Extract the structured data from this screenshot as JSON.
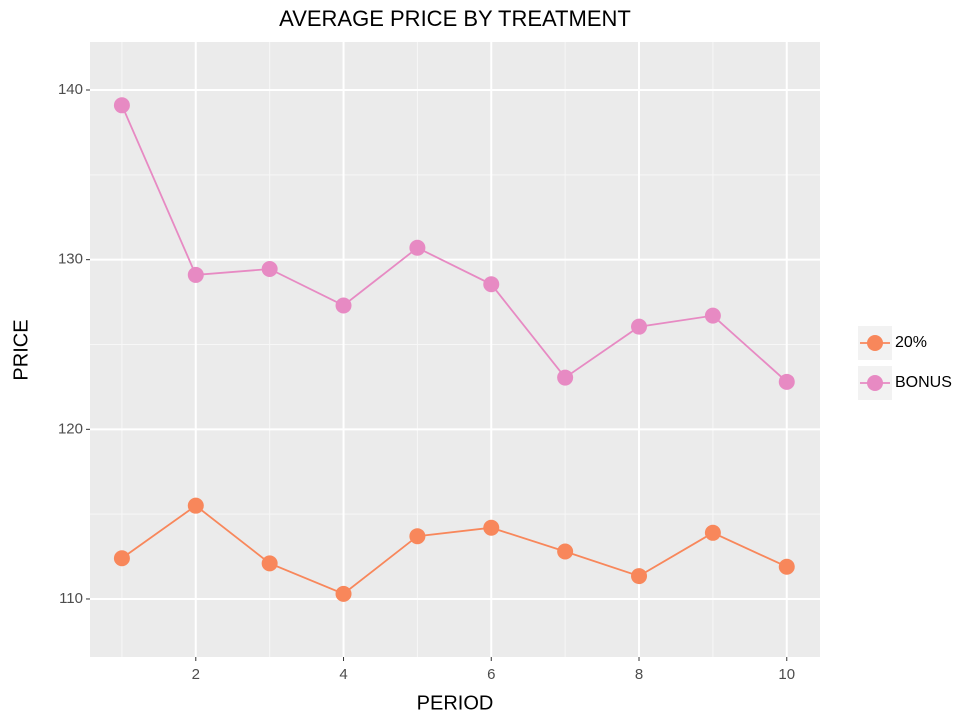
{
  "chart_data": {
    "type": "line",
    "title": "AVERAGE PRICE BY TREATMENT",
    "x_label": "PERIOD",
    "y_label": "PRICE",
    "x": [
      1,
      2,
      3,
      4,
      5,
      6,
      7,
      8,
      9,
      10
    ],
    "series": [
      {
        "name": "20%",
        "color": "#f8875b",
        "values": [
          112.4,
          115.5,
          112.1,
          110.3,
          113.7,
          114.2,
          112.8,
          111.35,
          113.9,
          111.9
        ]
      },
      {
        "name": "BONUS",
        "color": "#e78ac3",
        "values": [
          139.1,
          129.1,
          129.45,
          127.3,
          130.7,
          128.55,
          123.05,
          126.05,
          126.7,
          122.8
        ]
      }
    ],
    "xlim": [
      0.568,
      10.45
    ],
    "ylim": [
      106.58,
      142.83
    ],
    "xticks": [
      2,
      4,
      6,
      8,
      10
    ],
    "yticks": [
      110,
      120,
      130,
      140
    ],
    "grid": true,
    "legend": "right"
  }
}
